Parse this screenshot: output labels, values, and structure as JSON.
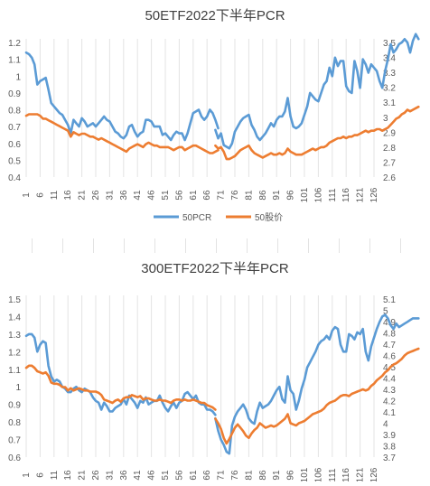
{
  "chart_data": [
    {
      "type": "line",
      "title": "50ETF2022下半年PCR",
      "x_ticks": [
        1,
        6,
        11,
        16,
        21,
        26,
        31,
        36,
        41,
        46,
        51,
        56,
        61,
        66,
        71,
        76,
        81,
        86,
        91,
        96,
        101,
        106,
        111,
        116,
        121,
        126
      ],
      "xlim": [
        1,
        126
      ],
      "y_left": {
        "ticks": [
          "0.4",
          "0.5",
          "0.6",
          "0.7",
          "0.8",
          "0.9",
          "1",
          "1.1",
          "1.2"
        ],
        "lim": [
          0.4,
          1.2
        ]
      },
      "y_right": {
        "ticks": [
          "2.6",
          "2.7",
          "2.8",
          "2.9",
          "3",
          "3.1",
          "3.2",
          "3.3",
          "3.4",
          "3.5"
        ],
        "lim": [
          2.6,
          3.5
        ]
      },
      "grid": true,
      "legend_position": "bottom",
      "series": [
        {
          "name": "50PCR",
          "axis": "left",
          "color": "#5b9bd5",
          "segments": [
            {
              "start": 1,
              "values": [
                1.14,
                1.13,
                1.11,
                1.07,
                0.95,
                0.97,
                0.98,
                0.99,
                0.92,
                0.84,
                0.82,
                0.8,
                0.78,
                0.77,
                0.74,
                0.71,
                0.66,
                0.74,
                0.72,
                0.7,
                0.75,
                0.73,
                0.7,
                0.71,
                0.72,
                0.7,
                0.72,
                0.74,
                0.76,
                0.74,
                0.73,
                0.7,
                0.67,
                0.66,
                0.64,
                0.63,
                0.65,
                0.7,
                0.71,
                0.67,
                0.64,
                0.66,
                0.67,
                0.74,
                0.74,
                0.73,
                0.7,
                0.7,
                0.7,
                0.65,
                0.66,
                0.64,
                0.62,
                0.65,
                0.67,
                0.66,
                0.66,
                0.62,
                0.66,
                0.72,
                0.78,
                0.79,
                0.8,
                0.76,
                0.74,
                0.76,
                0.8,
                0.78,
                0.74,
                0.69
              ]
            },
            {
              "start": 69,
              "values": [
                0.68,
                0.63,
                0.66,
                0.59,
                0.58,
                0.57,
                0.6,
                0.67,
                0.7,
                0.73,
                0.75,
                0.76,
                0.77,
                0.71,
                0.68,
                0.64,
                0.62,
                0.64,
                0.66,
                0.69,
                0.72,
                0.7,
                0.74,
                0.76,
                0.76,
                0.79,
                0.87,
                0.76,
                0.7,
                0.69,
                0.7,
                0.72,
                0.77,
                0.82,
                0.9,
                0.88,
                0.86,
                0.85,
                0.9,
                0.95,
                0.97,
                1.05,
                1.0,
                1.11,
                1.06,
                1.09,
                1.09,
                0.94,
                0.91,
                0.9,
                1.09,
                1.03,
                0.93,
                1.1,
                1.07,
                1.02,
                1.07,
                1.05,
                1.03,
                0.97,
                0.93,
                1.03,
                1.1,
                1.19,
                1.14,
                1.16,
                1.19,
                1.2,
                1.22,
                1.2,
                1.14,
                1.21,
                1.25,
                1.22
              ]
            }
          ]
        },
        {
          "name": "50股价",
          "axis": "right",
          "color": "#ed7d31",
          "segments": [
            {
              "start": 1,
              "values": [
                3.01,
                3.02,
                3.02,
                3.02,
                3.02,
                3.01,
                2.99,
                2.99,
                2.98,
                2.97,
                2.96,
                2.95,
                2.94,
                2.93,
                2.92,
                2.91,
                2.87,
                2.9,
                2.89,
                2.88,
                2.89,
                2.89,
                2.88,
                2.87,
                2.87,
                2.86,
                2.85,
                2.86,
                2.85,
                2.84,
                2.83,
                2.82,
                2.81,
                2.8,
                2.79,
                2.78,
                2.77,
                2.79,
                2.8,
                2.81,
                2.82,
                2.81,
                2.8,
                2.82,
                2.83,
                2.82,
                2.81,
                2.81,
                2.8,
                2.8,
                2.8,
                2.8,
                2.79,
                2.78,
                2.79,
                2.8,
                2.8,
                2.78,
                2.79,
                2.8,
                2.81,
                2.81,
                2.8,
                2.79,
                2.78,
                2.77,
                2.76,
                2.76,
                2.77,
                2.78
              ]
            },
            {
              "start": 69,
              "values": [
                2.81,
                2.79,
                2.8,
                2.77,
                2.72,
                2.72,
                2.73,
                2.74,
                2.76,
                2.78,
                2.79,
                2.8,
                2.81,
                2.78,
                2.76,
                2.75,
                2.74,
                2.73,
                2.74,
                2.75,
                2.76,
                2.75,
                2.75,
                2.76,
                2.75,
                2.76,
                2.79,
                2.77,
                2.76,
                2.75,
                2.75,
                2.75,
                2.76,
                2.77,
                2.78,
                2.79,
                2.78,
                2.79,
                2.8,
                2.8,
                2.81,
                2.83,
                2.84,
                2.85,
                2.86,
                2.86,
                2.87,
                2.86,
                2.87,
                2.87,
                2.88,
                2.88,
                2.89,
                2.9,
                2.91,
                2.9,
                2.91,
                2.91,
                2.92,
                2.92,
                2.91,
                2.92,
                2.93,
                2.95,
                2.97,
                2.99,
                3.0,
                3.02,
                3.03,
                3.05,
                3.04,
                3.05,
                3.06,
                3.07
              ]
            }
          ]
        }
      ]
    },
    {
      "type": "line",
      "title": "300ETF2022下半年PCR",
      "x_ticks": [
        1,
        6,
        11,
        16,
        21,
        26,
        31,
        36,
        41,
        46,
        51,
        56,
        61,
        66,
        71,
        76,
        81,
        86,
        91,
        96,
        101,
        106,
        111,
        116,
        121,
        126
      ],
      "xlim": [
        1,
        126
      ],
      "y_left": {
        "ticks": [
          "0.6",
          "0.7",
          "0.8",
          "0.9",
          "1",
          "1.1",
          "1.2",
          "1.3",
          "1.4",
          "1.5"
        ],
        "lim": [
          0.6,
          1.5
        ]
      },
      "y_right": {
        "ticks": [
          "3.7",
          "3.8",
          "3.9",
          "4",
          "4.1",
          "4.2",
          "4.3",
          "4.4",
          "4.5",
          "4.6",
          "4.7",
          "4.8",
          "4.9",
          "5",
          "5.1"
        ],
        "lim": [
          3.7,
          5.1
        ]
      },
      "grid": true,
      "series": [
        {
          "axis": "left",
          "color": "#5b9bd5",
          "segments": [
            {
              "start": 1,
              "values": [
                1.29,
                1.3,
                1.3,
                1.28,
                1.2,
                1.24,
                1.26,
                1.25,
                1.12,
                1.06,
                1.03,
                1.04,
                1.03,
                1.0,
                0.99,
                0.97,
                0.97,
                0.99,
                1.0,
                0.98,
                0.97,
                0.99,
                0.98,
                0.97,
                0.94,
                0.92,
                0.91,
                0.87,
                0.91,
                0.89,
                0.86,
                0.86,
                0.88,
                0.89,
                0.9,
                0.93,
                0.9,
                0.95,
                0.93,
                0.91,
                0.88,
                0.92,
                0.91,
                0.94,
                0.9,
                0.91,
                0.92,
                0.92,
                0.95,
                0.91,
                0.88,
                0.86,
                0.89,
                0.91,
                0.88,
                0.91,
                0.92,
                0.96,
                0.97,
                0.95,
                0.93,
                0.95,
                0.91,
                0.9,
                0.9,
                0.87,
                0.87,
                0.86,
                0.84
              ]
            },
            {
              "start": 69,
              "values": [
                0.82,
                0.75,
                0.7,
                0.67,
                0.63,
                0.62,
                0.78,
                0.83,
                0.86,
                0.88,
                0.9,
                0.87,
                0.82,
                0.8,
                0.79,
                0.86,
                0.91,
                0.88,
                0.89,
                0.9,
                0.92,
                0.95,
                0.98,
                1.0,
                0.93,
                0.91,
                1.06,
                0.98,
                0.96,
                0.87,
                0.92,
                0.99,
                1.04,
                1.11,
                1.14,
                1.17,
                1.2,
                1.24,
                1.26,
                1.27,
                1.29,
                1.27,
                1.32,
                1.34,
                1.33,
                1.24,
                1.2,
                1.2,
                1.3,
                1.29,
                1.27,
                1.31,
                1.3,
                1.33,
                1.2,
                1.15,
                1.23,
                1.28,
                1.33,
                1.37,
                1.4,
                1.41,
                1.39,
                1.35,
                1.33,
                1.36,
                1.34,
                1.35,
                1.36,
                1.37,
                1.38,
                1.39,
                1.39,
                1.39
              ]
            }
          ]
        },
        {
          "axis": "right",
          "color": "#ed7d31",
          "segments": [
            {
              "start": 1,
              "values": [
                4.49,
                4.51,
                4.51,
                4.49,
                4.46,
                4.45,
                4.44,
                4.45,
                4.42,
                4.36,
                4.35,
                4.35,
                4.34,
                4.32,
                4.32,
                4.29,
                4.31,
                4.29,
                4.3,
                4.31,
                4.3,
                4.29,
                4.29,
                4.28,
                4.28,
                4.28,
                4.27,
                4.25,
                4.21,
                4.2,
                4.19,
                4.18,
                4.2,
                4.21,
                4.19,
                4.22,
                4.23,
                4.23,
                4.25,
                4.24,
                4.23,
                4.24,
                4.21,
                4.22,
                4.22,
                4.21,
                4.2,
                4.2,
                4.21,
                4.2,
                4.2,
                4.19,
                4.18,
                4.2,
                4.21,
                4.21,
                4.2,
                4.21,
                4.2,
                4.2,
                4.21,
                4.2,
                4.19,
                4.18,
                4.18,
                4.16,
                4.15,
                4.14,
                4.12
              ]
            },
            {
              "start": 69,
              "values": [
                4.04,
                4.0,
                3.95,
                3.87,
                3.82,
                3.86,
                3.91,
                3.96,
                3.99,
                3.96,
                3.93,
                3.89,
                3.87,
                3.91,
                3.94,
                3.96,
                4.0,
                3.98,
                3.96,
                3.97,
                3.98,
                3.97,
                3.98,
                4.0,
                4.02,
                4.04,
                4.08,
                4.0,
                3.99,
                3.98,
                4.0,
                4.01,
                4.02,
                4.04,
                4.06,
                4.08,
                4.09,
                4.1,
                4.11,
                4.13,
                4.16,
                4.18,
                4.19,
                4.2,
                4.22,
                4.24,
                4.25,
                4.25,
                4.24,
                4.26,
                4.27,
                4.28,
                4.29,
                4.3,
                4.29,
                4.3,
                4.33,
                4.35,
                4.38,
                4.4,
                4.42,
                4.45,
                4.47,
                4.5,
                4.52,
                4.53,
                4.55,
                4.57,
                4.6,
                4.62,
                4.63,
                4.64,
                4.65,
                4.66
              ]
            }
          ]
        }
      ]
    }
  ]
}
